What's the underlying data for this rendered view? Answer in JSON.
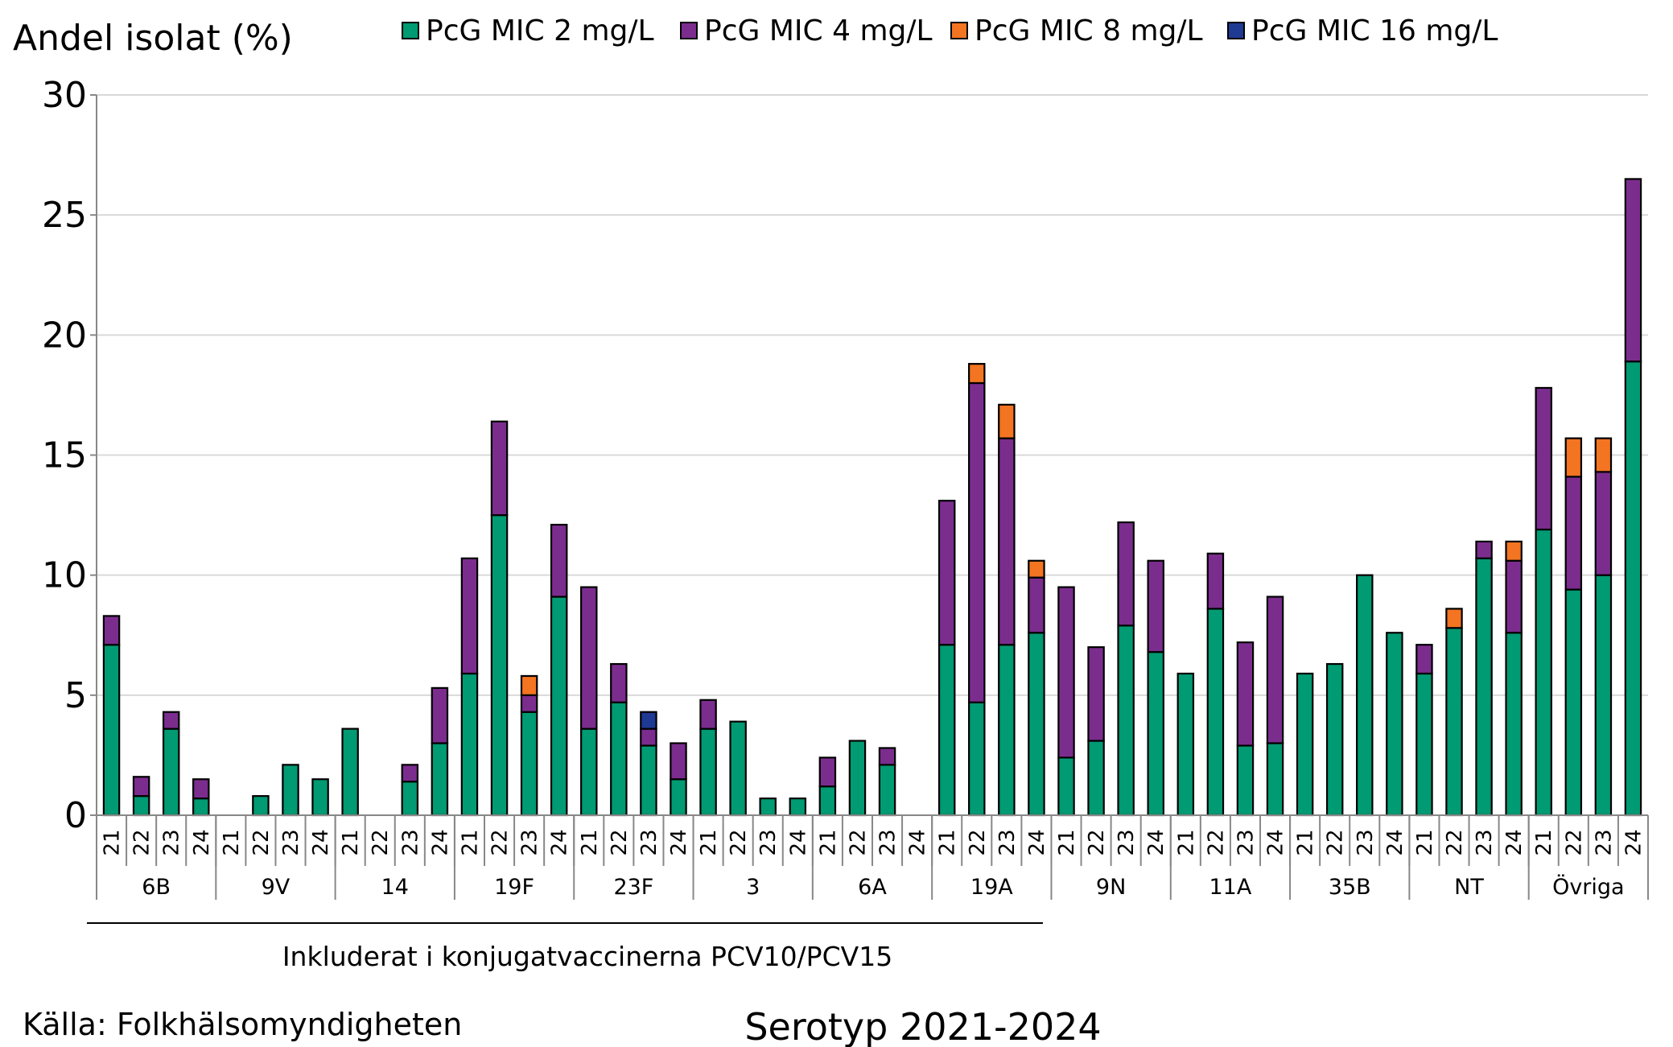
{
  "chart_data": {
    "type": "bar",
    "stacked": true,
    "ylabel": "Andel isolat (%)",
    "xlabel": "Serotyp 2021-2024",
    "source_note": "Källa: Folkhälsomyndigheten",
    "bracket_note": "Inkluderat i konjugatvaccinerna PCV10/PCV15",
    "ylim": [
      0,
      30
    ],
    "yticks": [
      "0",
      "5",
      "10",
      "15",
      "20",
      "25",
      "30"
    ],
    "grid": true,
    "legend_position": "top",
    "groups": [
      "6B",
      "9V",
      "14",
      "19F",
      "23F",
      "3",
      "6A",
      "19A",
      "9N",
      "11A",
      "35B",
      "NT",
      "Övriga"
    ],
    "years": [
      "21",
      "22",
      "23",
      "24"
    ],
    "series": [
      {
        "name": "PcG MIC 2 mg/L",
        "color": "#009A73",
        "values": [
          7.1,
          0.8,
          3.6,
          0.7,
          0,
          0.8,
          2.1,
          1.5,
          3.6,
          0,
          1.4,
          3.0,
          5.9,
          12.5,
          4.3,
          9.1,
          3.6,
          4.7,
          2.9,
          1.5,
          3.6,
          3.9,
          0.7,
          0.7,
          1.2,
          3.1,
          2.1,
          0,
          7.1,
          4.7,
          7.1,
          7.6,
          2.4,
          3.1,
          7.9,
          6.8,
          5.9,
          8.6,
          2.9,
          3.0,
          5.9,
          6.3,
          10.0,
          7.6,
          5.9,
          7.8,
          10.7,
          7.6,
          11.9,
          9.4,
          10.0,
          18.9
        ]
      },
      {
        "name": "PcG MIC 4 mg/L",
        "color": "#7B2D8E",
        "values": [
          1.2,
          0.8,
          0.7,
          0.8,
          0,
          0,
          0,
          0,
          0,
          0,
          0.7,
          2.3,
          4.8,
          3.9,
          0.7,
          3.0,
          5.9,
          1.6,
          0.7,
          1.5,
          1.2,
          0,
          0,
          0,
          1.2,
          0,
          0.7,
          0,
          6.0,
          13.3,
          8.6,
          2.3,
          7.1,
          3.9,
          4.3,
          3.8,
          0,
          2.3,
          4.3,
          6.1,
          0,
          0,
          0,
          0,
          1.2,
          0,
          0.7,
          3.0,
          5.9,
          4.7,
          4.3,
          7.6
        ]
      },
      {
        "name": "PcG MIC 8 mg/L",
        "color": "#F37421",
        "values": [
          0,
          0,
          0,
          0,
          0,
          0,
          0,
          0,
          0,
          0,
          0,
          0,
          0,
          0,
          0.8,
          0,
          0,
          0,
          0,
          0,
          0,
          0,
          0,
          0,
          0,
          0,
          0,
          0,
          0,
          0.8,
          1.4,
          0.7,
          0,
          0,
          0,
          0,
          0,
          0,
          0,
          0,
          0,
          0,
          0,
          0,
          0,
          0.8,
          0,
          0.8,
          0,
          1.6,
          1.4,
          0
        ]
      },
      {
        "name": "PcG MIC 16 mg/L",
        "color": "#1F3A93",
        "values": [
          0,
          0,
          0,
          0,
          0,
          0,
          0,
          0,
          0,
          0,
          0,
          0,
          0,
          0,
          0,
          0,
          0,
          0,
          0.7,
          0,
          0,
          0,
          0,
          0,
          0,
          0,
          0,
          0,
          0,
          0,
          0,
          0,
          0,
          0,
          0,
          0,
          0,
          0,
          0,
          0,
          0,
          0,
          0,
          0,
          0,
          0,
          0,
          0,
          0,
          0,
          0,
          0
        ]
      }
    ]
  }
}
